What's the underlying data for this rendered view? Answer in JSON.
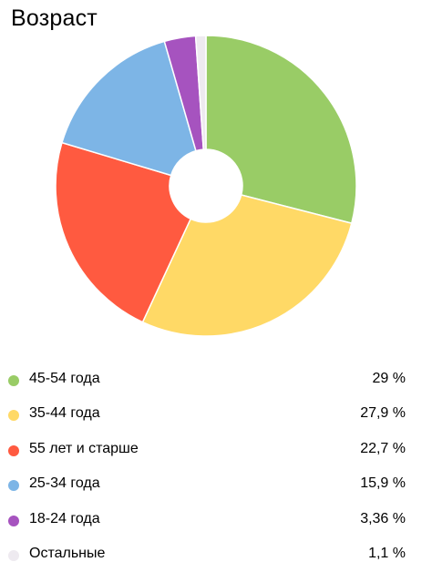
{
  "chart_data": {
    "type": "pie",
    "title": "Возраст",
    "donut": true,
    "legend_position": "bottom",
    "slices": [
      {
        "label": "45-54 года",
        "value": 29,
        "value_label": "29 %",
        "color": "#99cc66"
      },
      {
        "label": "35-44 года",
        "value": 27.9,
        "value_label": "27,9 %",
        "color": "#ffd966"
      },
      {
        "label": "55 лет и старше",
        "value": 22.7,
        "value_label": "22,7 %",
        "color": "#ff5a40"
      },
      {
        "label": "25-34 года",
        "value": 15.9,
        "value_label": "15,9 %",
        "color": "#7db5e6"
      },
      {
        "label": "18-24 года",
        "value": 3.36,
        "value_label": "3,36 %",
        "color": "#a653bf"
      },
      {
        "label": "Остальные",
        "value": 1.1,
        "value_label": "1,1 %",
        "color": "#eeeaf0"
      }
    ]
  }
}
